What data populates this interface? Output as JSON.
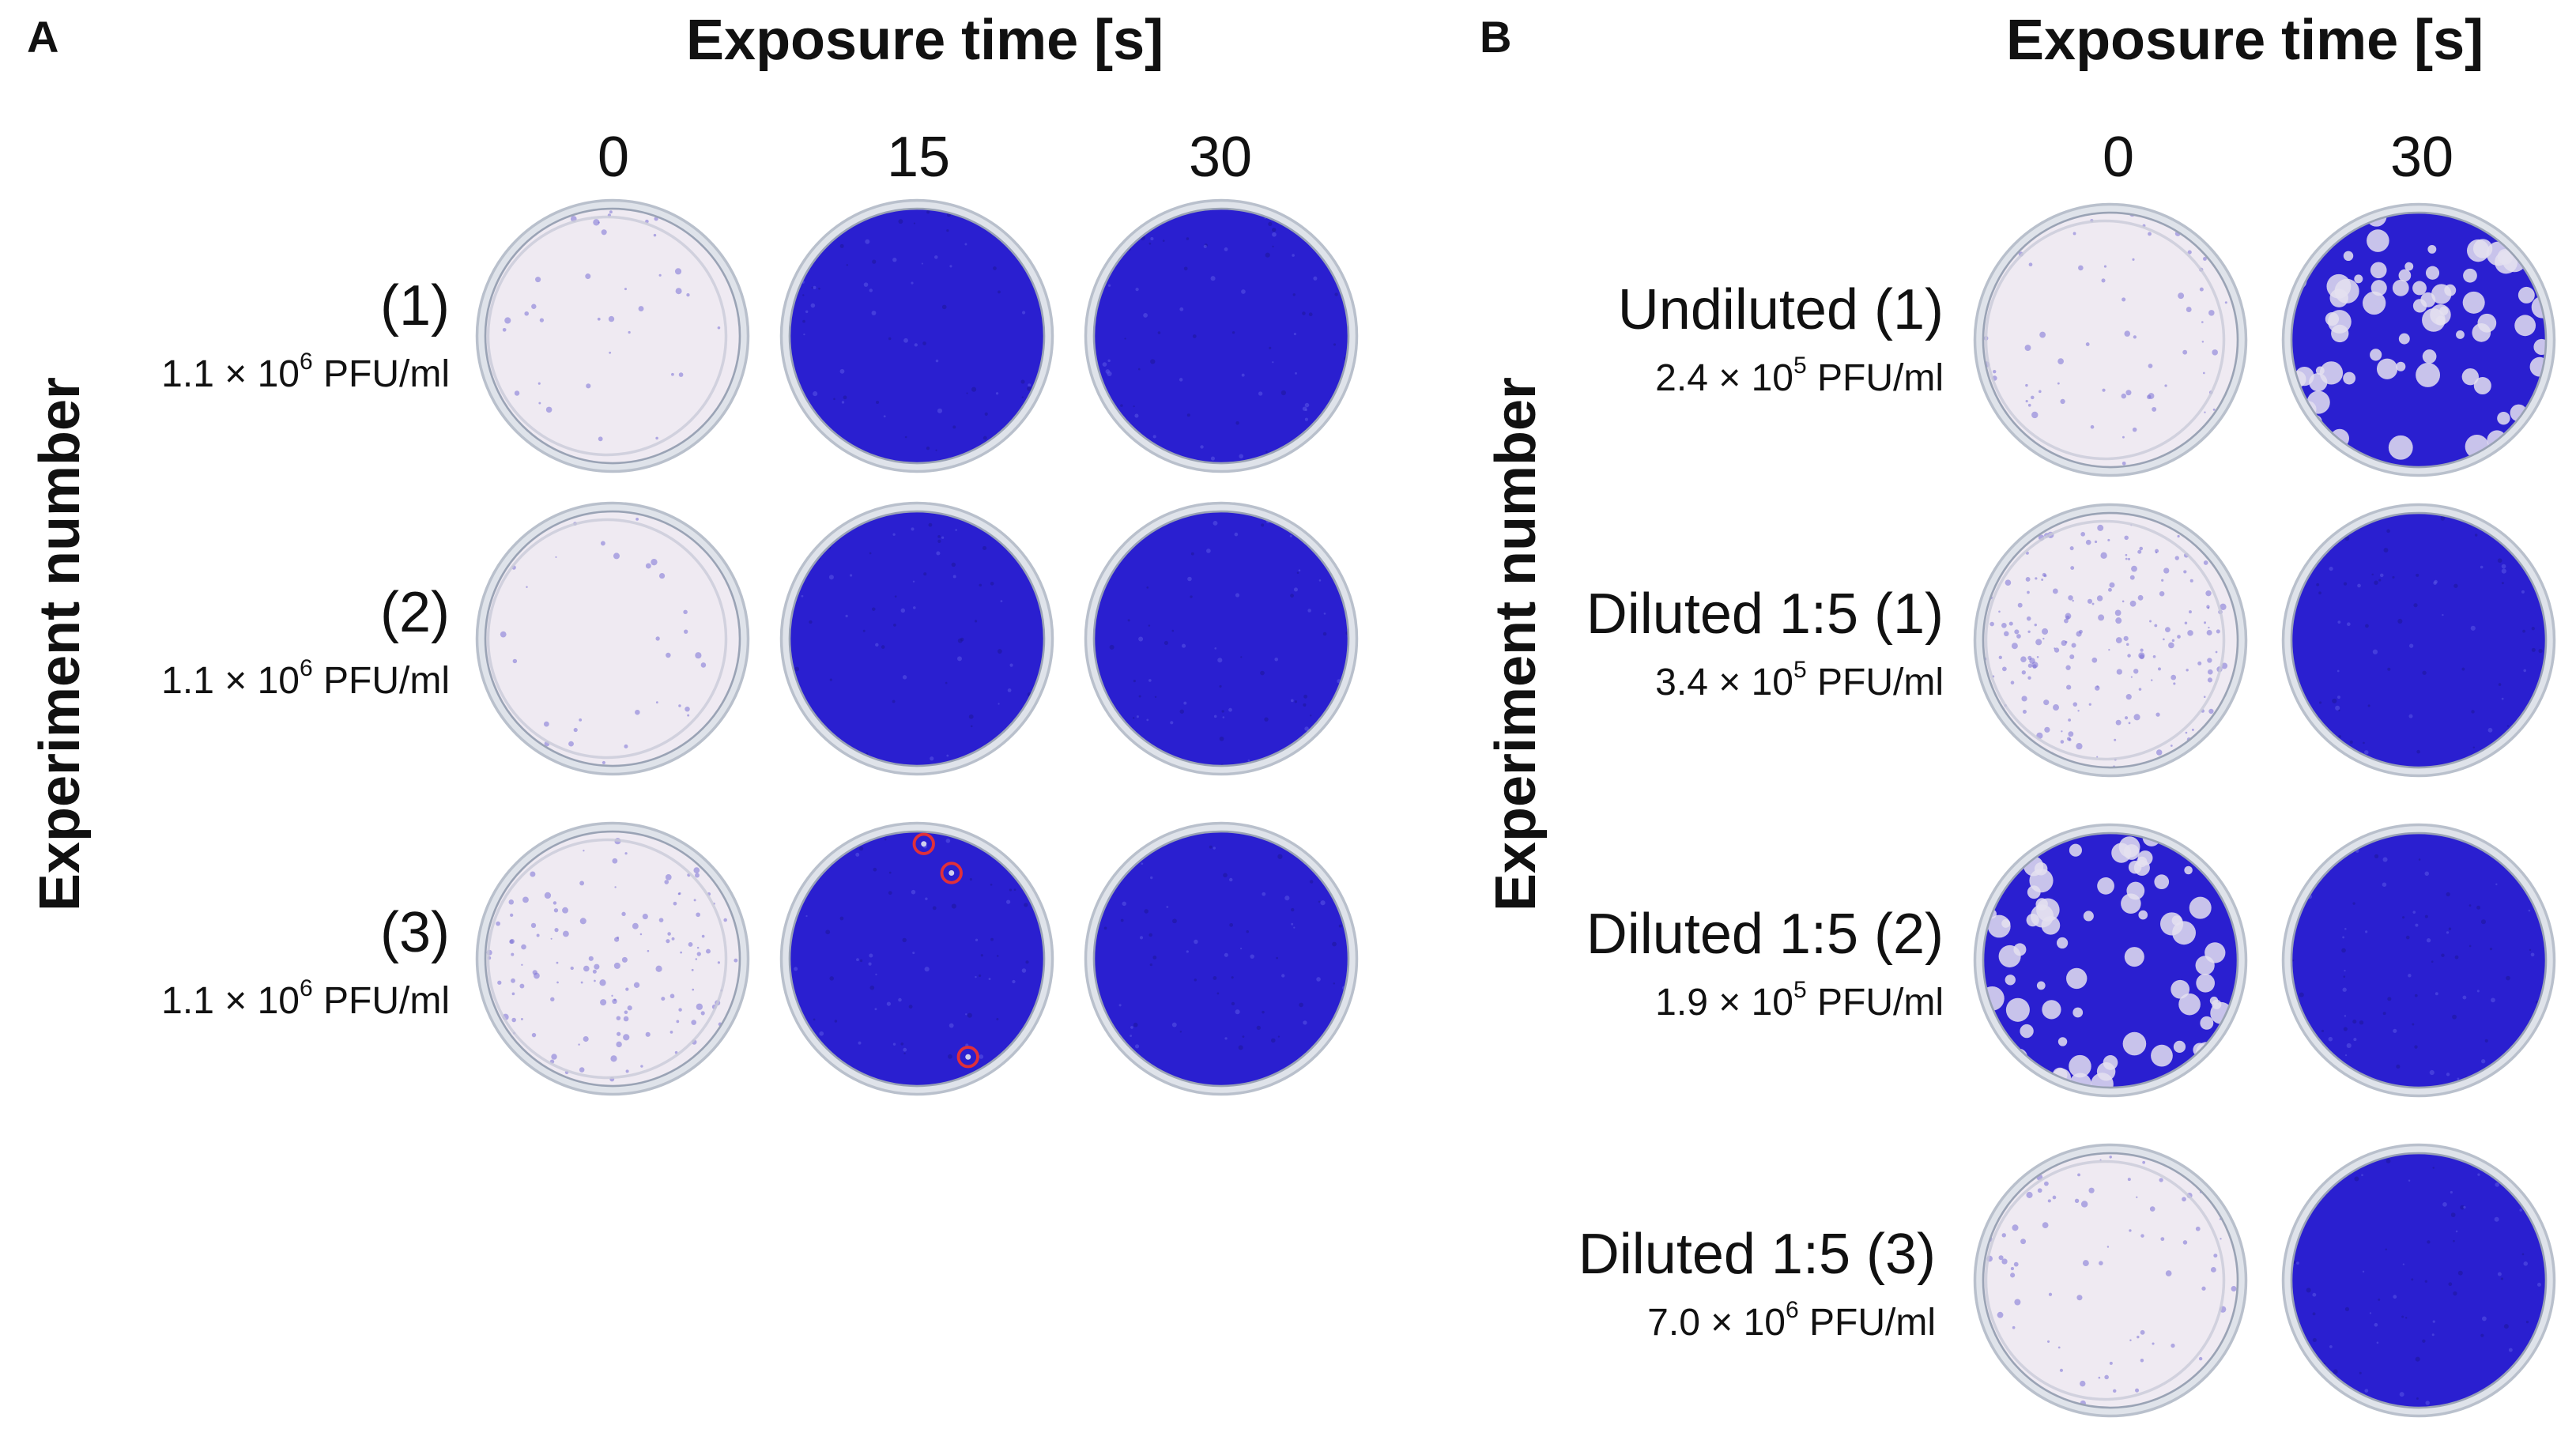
{
  "panels": [
    {
      "letter": "A",
      "header": "Exposure time [s]",
      "ylabel": "Experiment number",
      "columns": [
        "0",
        "15",
        "30"
      ],
      "rows": [
        {
          "label": "(1)",
          "titer": "1.1 × 10",
          "exp": "6",
          "unit": " PFU/ml"
        },
        {
          "label": "(2)",
          "titer": "1.1 × 10",
          "exp": "6",
          "unit": " PFU/ml"
        },
        {
          "label": "(3)",
          "titer": "1.1 × 10",
          "exp": "6",
          "unit": " PFU/ml"
        }
      ]
    },
    {
      "letter": "B",
      "header": "Exposure time [s]",
      "ylabel": "Experiment number",
      "columns": [
        "0",
        "30"
      ],
      "rows": [
        {
          "label": "Undiluted (1)",
          "titer": "2.4 × 10",
          "exp": "5",
          "unit": " PFU/ml"
        },
        {
          "label": "Diluted 1:5 (1)",
          "titer": "3.4 × 10",
          "exp": "5",
          "unit": " PFU/ml"
        },
        {
          "label": "Diluted 1:5 (2)",
          "titer": "1.9 × 10",
          "exp": "5",
          "unit": " PFU/ml"
        },
        {
          "label": "Diluted 1:5 (3)",
          "titer": "7.0 × 10",
          "exp": "6",
          "unit": " PFU/ml"
        }
      ]
    }
  ],
  "colors": {
    "stain": "#2a1fd0",
    "stain_dark": "#1e1699",
    "clear_plate": "#efeaf2",
    "plaque_marker": "#e0303a"
  }
}
